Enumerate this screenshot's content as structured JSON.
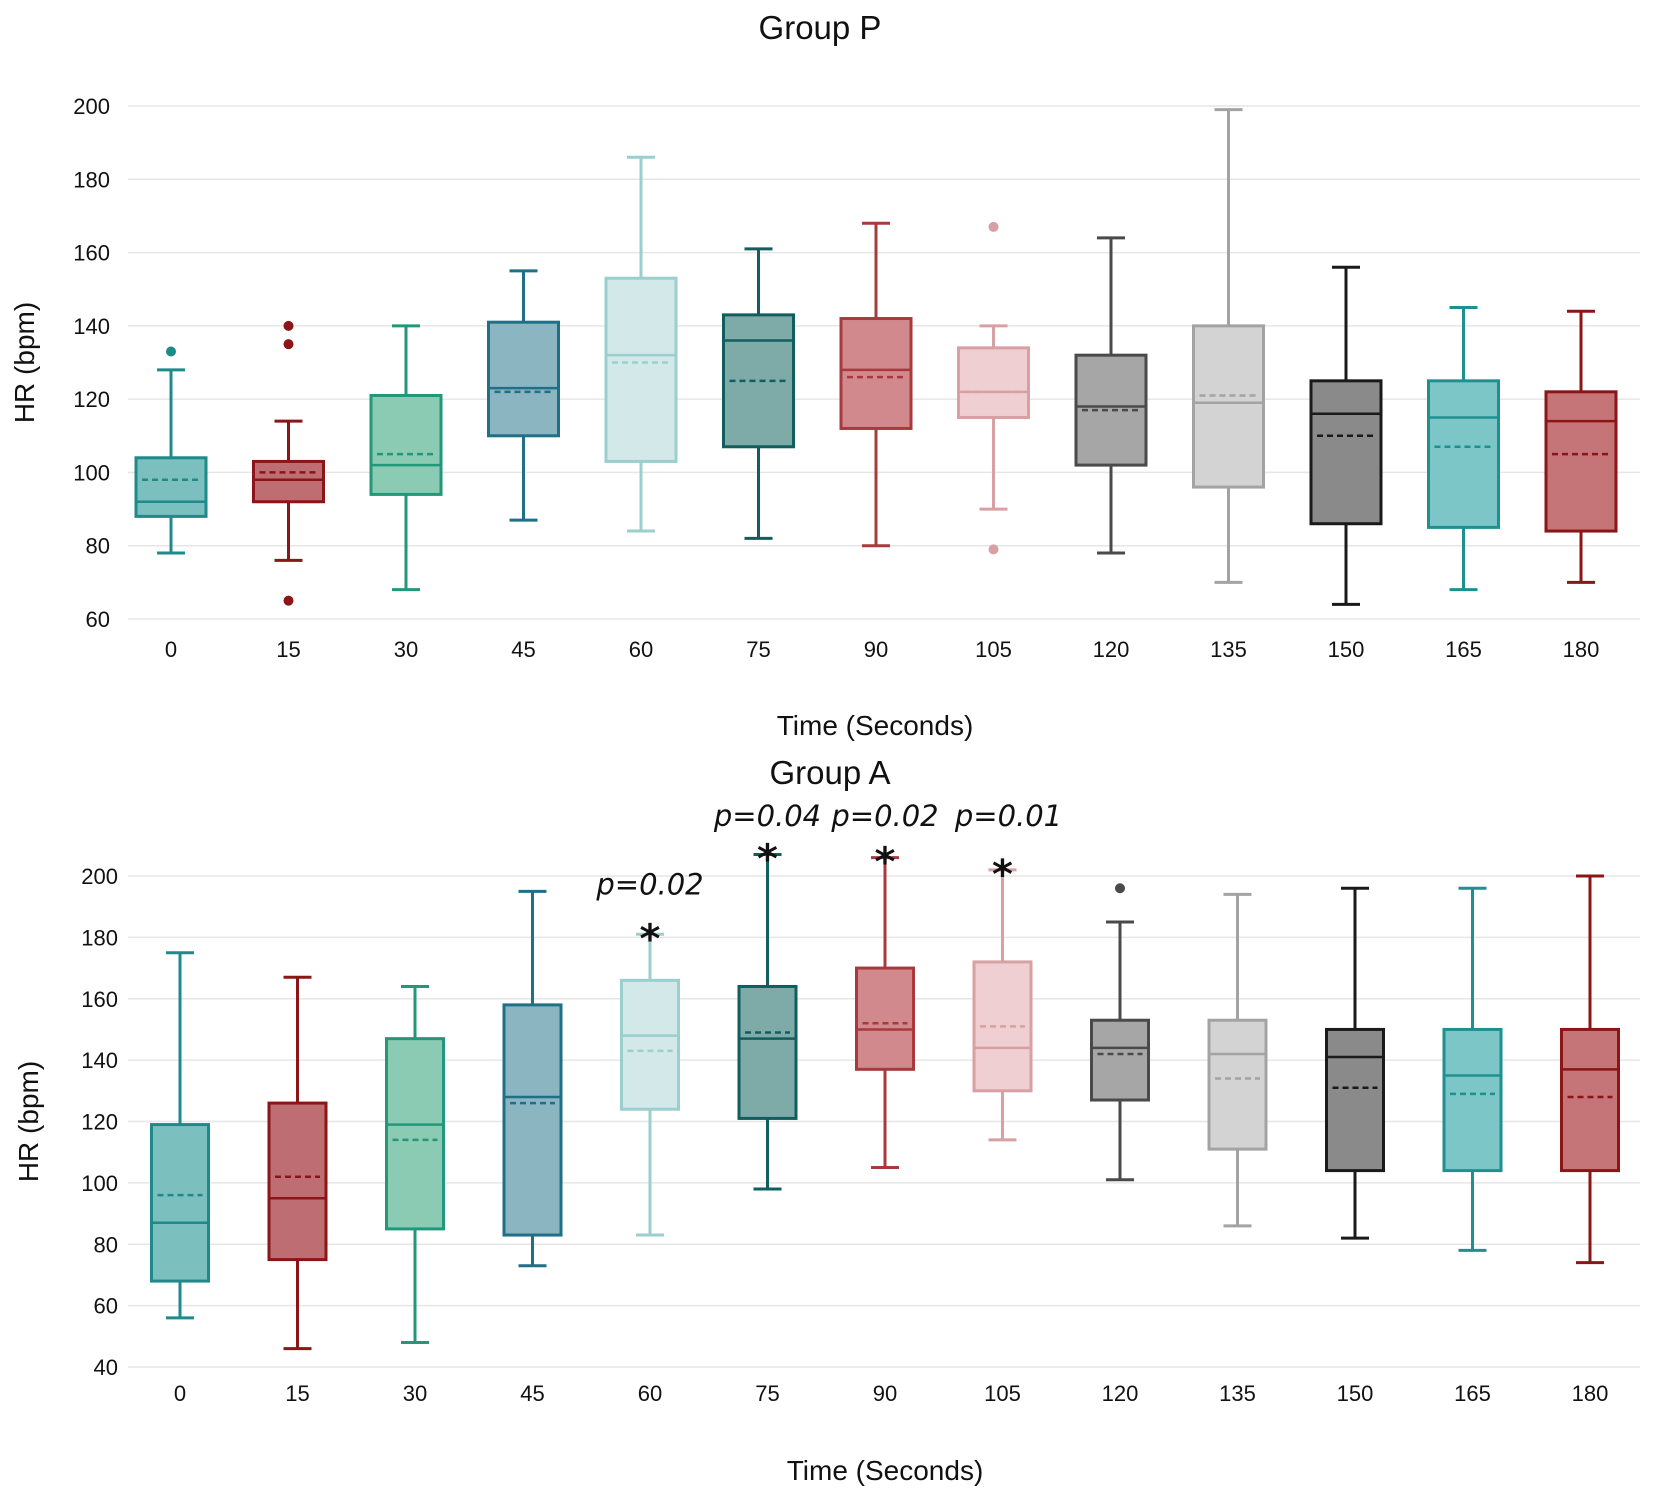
{
  "palette": [
    {
      "fill": "#7bbfbf",
      "stroke": "#1f8a8a",
      "whisker": "#1f8a8a",
      "outlier": "#1f8a8a"
    },
    {
      "fill": "#be6e72",
      "stroke": "#8b1517",
      "whisker": "#8b1517",
      "outlier": "#8b1517"
    },
    {
      "fill": "#8bcbb4",
      "stroke": "#23977a",
      "whisker": "#23977a",
      "outlier": "#23977a"
    },
    {
      "fill": "#8bb5c1",
      "stroke": "#1f6f87",
      "whisker": "#1f6f87",
      "outlier": "#1f6f87"
    },
    {
      "fill": "#d3e8e8",
      "stroke": "#9acfce",
      "whisker": "#9acfce",
      "outlier": "#9acfce"
    },
    {
      "fill": "#7eaaa8",
      "stroke": "#125e5f",
      "whisker": "#125e5f",
      "outlier": "#125e5f"
    },
    {
      "fill": "#d1898d",
      "stroke": "#a83a3e",
      "whisker": "#a83a3e",
      "outlier": "#a83a3e"
    },
    {
      "fill": "#efcfd1",
      "stroke": "#d8a0a3",
      "whisker": "#d8a0a3",
      "outlier": "#d8a0a3"
    },
    {
      "fill": "#a6a6a6",
      "stroke": "#4a4a4a",
      "whisker": "#4a4a4a",
      "outlier": "#4a4a4a"
    },
    {
      "fill": "#d3d3d3",
      "stroke": "#a3a3a3",
      "whisker": "#a3a3a3",
      "outlier": "#a3a3a3"
    },
    {
      "fill": "#8a8a8a",
      "stroke": "#1a1a1a",
      "whisker": "#1a1a1a",
      "outlier": "#1a1a1a"
    },
    {
      "fill": "#7cc6c7",
      "stroke": "#1f9090",
      "whisker": "#1f9090",
      "outlier": "#1f9090"
    },
    {
      "fill": "#c57478",
      "stroke": "#8b1517",
      "whisker": "#8b1517",
      "outlier": "#8b1517"
    }
  ],
  "chart_data": [
    {
      "type": "box",
      "title": "Group P",
      "xlabel": "Time (Seconds)",
      "ylabel": "HR (bpm)",
      "ylim": [
        60,
        200
      ],
      "yticks": [
        "60",
        "80",
        "100",
        "120",
        "140",
        "160",
        "180",
        "200"
      ],
      "categories": [
        "0",
        "15",
        "30",
        "45",
        "60",
        "75",
        "90",
        "105",
        "120",
        "135",
        "150",
        "165",
        "180"
      ],
      "boxes": [
        {
          "min": 78,
          "q1": 88,
          "median": 92,
          "mean": 98,
          "q3": 104,
          "max": 128,
          "outliers": [
            133
          ]
        },
        {
          "min": 76,
          "q1": 92,
          "median": 98,
          "mean": 100,
          "q3": 103,
          "max": 114,
          "outliers": [
            140,
            135,
            65
          ]
        },
        {
          "min": 68,
          "q1": 94,
          "median": 102,
          "mean": 105,
          "q3": 121,
          "max": 140,
          "outliers": []
        },
        {
          "min": 87,
          "q1": 110,
          "median": 123,
          "mean": 122,
          "q3": 141,
          "max": 155,
          "outliers": []
        },
        {
          "min": 84,
          "q1": 103,
          "median": 132,
          "mean": 130,
          "q3": 153,
          "max": 186,
          "outliers": []
        },
        {
          "min": 82,
          "q1": 107,
          "median": 136,
          "mean": 125,
          "q3": 143,
          "max": 161,
          "outliers": []
        },
        {
          "min": 80,
          "q1": 112,
          "median": 128,
          "mean": 126,
          "q3": 142,
          "max": 168,
          "outliers": []
        },
        {
          "min": 90,
          "q1": 115,
          "median": 122,
          "mean": 122,
          "q3": 134,
          "max": 140,
          "outliers": [
            167,
            79
          ]
        },
        {
          "min": 78,
          "q1": 102,
          "median": 118,
          "mean": 117,
          "q3": 132,
          "max": 164,
          "outliers": []
        },
        {
          "min": 70,
          "q1": 96,
          "median": 119,
          "mean": 121,
          "q3": 140,
          "max": 199,
          "outliers": []
        },
        {
          "min": 64,
          "q1": 86,
          "median": 116,
          "mean": 110,
          "q3": 125,
          "max": 156,
          "outliers": []
        },
        {
          "min": 68,
          "q1": 85,
          "median": 115,
          "mean": 107,
          "q3": 125,
          "max": 145,
          "outliers": []
        },
        {
          "min": 70,
          "q1": 84,
          "median": 114,
          "mean": 105,
          "q3": 122,
          "max": 144,
          "outliers": []
        }
      ],
      "annotations": []
    },
    {
      "type": "box",
      "title": "Group A",
      "xlabel": "Time (Seconds)",
      "ylabel": "HR (bpm)",
      "ylim": [
        40,
        200
      ],
      "yticks": [
        "40",
        "60",
        "80",
        "100",
        "120",
        "140",
        "160",
        "180",
        "200"
      ],
      "categories": [
        "0",
        "15",
        "30",
        "45",
        "60",
        "75",
        "90",
        "105",
        "120",
        "135",
        "150",
        "165",
        "180"
      ],
      "boxes": [
        {
          "min": 56,
          "q1": 68,
          "median": 87,
          "mean": 96,
          "q3": 119,
          "max": 175,
          "outliers": []
        },
        {
          "min": 46,
          "q1": 75,
          "median": 95,
          "mean": 102,
          "q3": 126,
          "max": 167,
          "outliers": []
        },
        {
          "min": 48,
          "q1": 85,
          "median": 119,
          "mean": 114,
          "q3": 147,
          "max": 164,
          "outliers": []
        },
        {
          "min": 73,
          "q1": 83,
          "median": 128,
          "mean": 126,
          "q3": 158,
          "max": 195,
          "outliers": []
        },
        {
          "min": 83,
          "q1": 124,
          "median": 148,
          "mean": 143,
          "q3": 166,
          "max": 181,
          "outliers": []
        },
        {
          "min": 98,
          "q1": 121,
          "median": 147,
          "mean": 149,
          "q3": 164,
          "max": 207,
          "outliers": []
        },
        {
          "min": 105,
          "q1": 137,
          "median": 150,
          "mean": 152,
          "q3": 170,
          "max": 206,
          "outliers": []
        },
        {
          "min": 114,
          "q1": 130,
          "median": 144,
          "mean": 151,
          "q3": 172,
          "max": 202,
          "outliers": []
        },
        {
          "min": 101,
          "q1": 127,
          "median": 144,
          "mean": 142,
          "q3": 153,
          "max": 185,
          "outliers": [
            196
          ]
        },
        {
          "min": 86,
          "q1": 111,
          "median": 142,
          "mean": 134,
          "q3": 153,
          "max": 194,
          "outliers": []
        },
        {
          "min": 82,
          "q1": 104,
          "median": 141,
          "mean": 131,
          "q3": 150,
          "max": 196,
          "outliers": []
        },
        {
          "min": 78,
          "q1": 104,
          "median": 135,
          "mean": 129,
          "q3": 150,
          "max": 196,
          "outliers": []
        },
        {
          "min": 74,
          "q1": 104,
          "median": 137,
          "mean": 128,
          "q3": 150,
          "max": 200,
          "outliers": []
        }
      ],
      "annotations": [
        {
          "category": "60",
          "label": "p=0.02",
          "star": "*"
        },
        {
          "category": "75",
          "label": "p=0.04",
          "star": "*"
        },
        {
          "category": "90",
          "label": "p=0.02",
          "star": "*"
        },
        {
          "category": "105",
          "label": "p=0.01",
          "star": "*"
        }
      ]
    }
  ]
}
